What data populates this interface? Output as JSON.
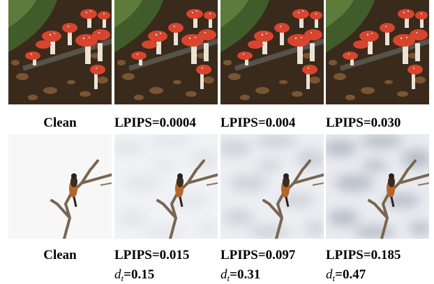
{
  "rows": [
    {
      "captions": [
        {
          "text": "Clean"
        },
        {
          "text": "LPIPS=0.0004"
        },
        {
          "text": "LPIPS=0.004"
        },
        {
          "text": "LPIPS=0.030"
        }
      ]
    },
    {
      "captions": [
        {
          "text": "Clean"
        },
        {
          "text": "LPIPS=0.015",
          "var": "d",
          "sub": "t",
          "rest": "=0.15"
        },
        {
          "text": "LPIPS=0.097",
          "var": "d",
          "sub": "t",
          "rest": "=0.31"
        },
        {
          "text": "LPIPS=0.185",
          "var": "d",
          "sub": "t",
          "rest": "=0.47"
        }
      ]
    }
  ]
}
